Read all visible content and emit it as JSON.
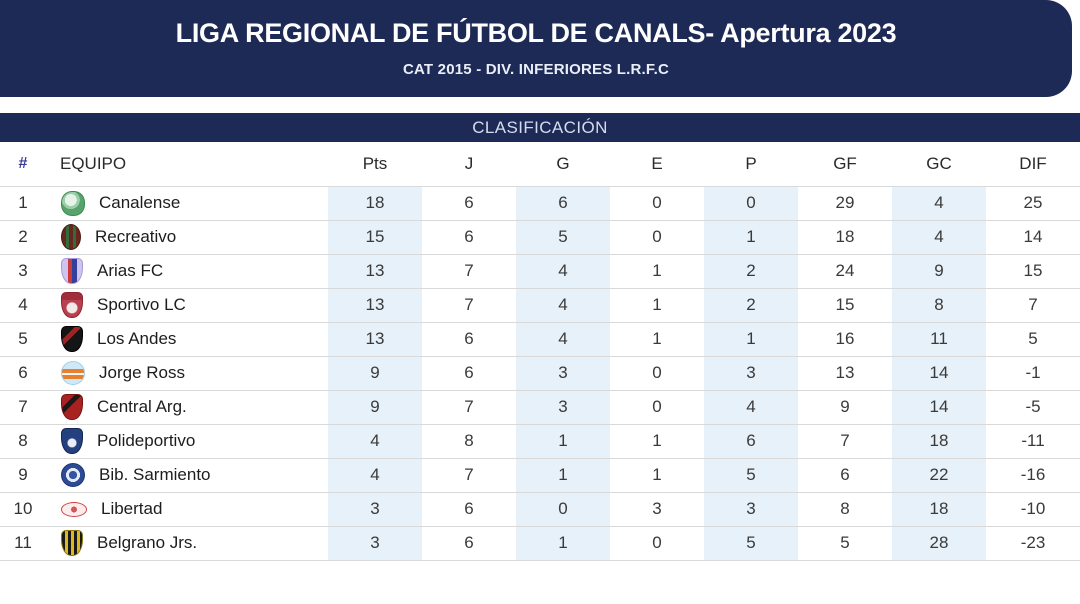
{
  "header": {
    "title": "LIGA REGIONAL DE FÚTBOL DE CANALS- Apertura 2023",
    "subtitle": "CAT 2015 - DIV. INFERIORES L.R.F.C"
  },
  "classification_bar": {
    "label": "CLASIFICACIÓN"
  },
  "colors": {
    "navy": "#1e2a56",
    "shade": "#e7f1f9",
    "row-border": "#d9d9d9",
    "hash": "#3b3b9b"
  },
  "table": {
    "headers": {
      "pos": "#",
      "team": "EQUIPO",
      "stats": [
        "Pts",
        "J",
        "G",
        "E",
        "P",
        "GF",
        "GC",
        "DIF"
      ]
    },
    "shaded_stat_columns": [
      "Pts",
      "G",
      "P",
      "GC"
    ],
    "rows": [
      {
        "pos": "1",
        "team": "Canalense",
        "stats": [
          "18",
          "6",
          "6",
          "0",
          "0",
          "29",
          "4",
          "25"
        ],
        "logo": {
          "icon": "canalense-crest-icon",
          "shape": "shield-round",
          "background": "radial-gradient(circle at 40% 35%, #e6f3e8 0 6px, #9ccfa8 6px 9px, #58a36b 9px)",
          "border": "#3f8a54"
        }
      },
      {
        "pos": "2",
        "team": "Recreativo",
        "stats": [
          "15",
          "6",
          "5",
          "0",
          "1",
          "18",
          "4",
          "14"
        ],
        "logo": {
          "icon": "recreativo-crest-icon",
          "shape": "oval",
          "background": "linear-gradient(90deg,#69261c 0 4px,#2f6e3c 4px 7px,#69261c 7px 11px,#2f6e3c 11px 14px,#69261c 14px)",
          "border": "#4a1a12"
        }
      },
      {
        "pos": "3",
        "team": "Arias FC",
        "stats": [
          "13",
          "7",
          "4",
          "1",
          "2",
          "24",
          "9",
          "15"
        ],
        "logo": {
          "icon": "arias-fc-crest-icon",
          "shape": "shield",
          "background": "linear-gradient(90deg,#cfc4ef 0 6px,#cc3a3a 6px 10px,#31409b 10px 15px,#cfc4ef 15px)",
          "border": "#a79ad6"
        }
      },
      {
        "pos": "4",
        "team": "Sportivo LC",
        "stats": [
          "13",
          "7",
          "4",
          "1",
          "2",
          "15",
          "8",
          "7"
        ],
        "logo": {
          "icon": "sportivo-lc-crest-icon",
          "shape": "shield",
          "background": "radial-gradient(circle at 50% 62%, #f3e9e9 0 5px, rgba(0,0,0,0) 6px), linear-gradient(180deg,#9e2f3d 0 30%, #b8414f 30%)",
          "border": "#8e2230"
        }
      },
      {
        "pos": "5",
        "team": "Los Andes",
        "stats": [
          "13",
          "6",
          "4",
          "1",
          "1",
          "16",
          "11",
          "5"
        ],
        "logo": {
          "icon": "los-andes-crest-icon",
          "shape": "shield",
          "background": "linear-gradient(135deg,#151515 0 9px,#a02222 9px 14px,#151515 14px)",
          "border": "#000000"
        }
      },
      {
        "pos": "6",
        "team": "Jorge Ross",
        "stats": [
          "9",
          "6",
          "3",
          "0",
          "3",
          "13",
          "14",
          "-1"
        ],
        "logo": {
          "icon": "jorge-ross-crest-icon",
          "shape": "circle",
          "background": "linear-gradient(180deg,#cfe9f6 0 7px,#e87f2e 7px 11px,#f5f5f5 11px 13px,#e87f2e 13px 17px,#cfe9f6 17px)",
          "border": "#9fd0e8"
        }
      },
      {
        "pos": "7",
        "team": "Central Arg.",
        "stats": [
          "9",
          "7",
          "3",
          "0",
          "4",
          "9",
          "14",
          "-5"
        ],
        "logo": {
          "icon": "central-argentino-crest-icon",
          "shape": "shield",
          "background": "linear-gradient(135deg,#a82222 0 9px,#1a1a1a 9px 14px,#a82222 14px)",
          "border": "#741414"
        }
      },
      {
        "pos": "8",
        "team": "Polideportivo",
        "stats": [
          "4",
          "8",
          "1",
          "1",
          "6",
          "7",
          "18",
          "-11"
        ],
        "logo": {
          "icon": "polideportivo-crest-icon",
          "shape": "shield",
          "background": "radial-gradient(circle at 50% 58%, #e8edf6 0 4px, rgba(0,0,0,0) 5px), linear-gradient(180deg,#24407f 0 100%)",
          "border": "#152450"
        }
      },
      {
        "pos": "9",
        "team": "Bib. Sarmiento",
        "stats": [
          "4",
          "7",
          "1",
          "1",
          "5",
          "6",
          "22",
          "-16"
        ],
        "logo": {
          "icon": "biblioteca-sarmiento-crest-icon",
          "shape": "circle",
          "background": "radial-gradient(circle at 50% 50%, #35539e 0 4px, #e3eaf5 4px 7px, #2c4a95 7px 12px)",
          "border": "#20386f"
        }
      },
      {
        "pos": "10",
        "team": "Libertad",
        "stats": [
          "3",
          "6",
          "0",
          "3",
          "3",
          "8",
          "18",
          "-10"
        ],
        "logo": {
          "icon": "libertad-crest-icon",
          "shape": "ellipse",
          "background": "radial-gradient(circle at 50% 50%, #d85555 0 3px, #fcecec 3px)",
          "border": "#cc4444"
        }
      },
      {
        "pos": "11",
        "team": "Belgrano Jrs.",
        "stats": [
          "3",
          "6",
          "1",
          "0",
          "5",
          "5",
          "28",
          "-23"
        ],
        "logo": {
          "icon": "belgrano-juniors-crest-icon",
          "shape": "shield",
          "background": "repeating-linear-gradient(90deg,#191919 0 3px,#ddb81f 3px 6px)",
          "border": "#8f7a0e"
        }
      }
    ]
  }
}
